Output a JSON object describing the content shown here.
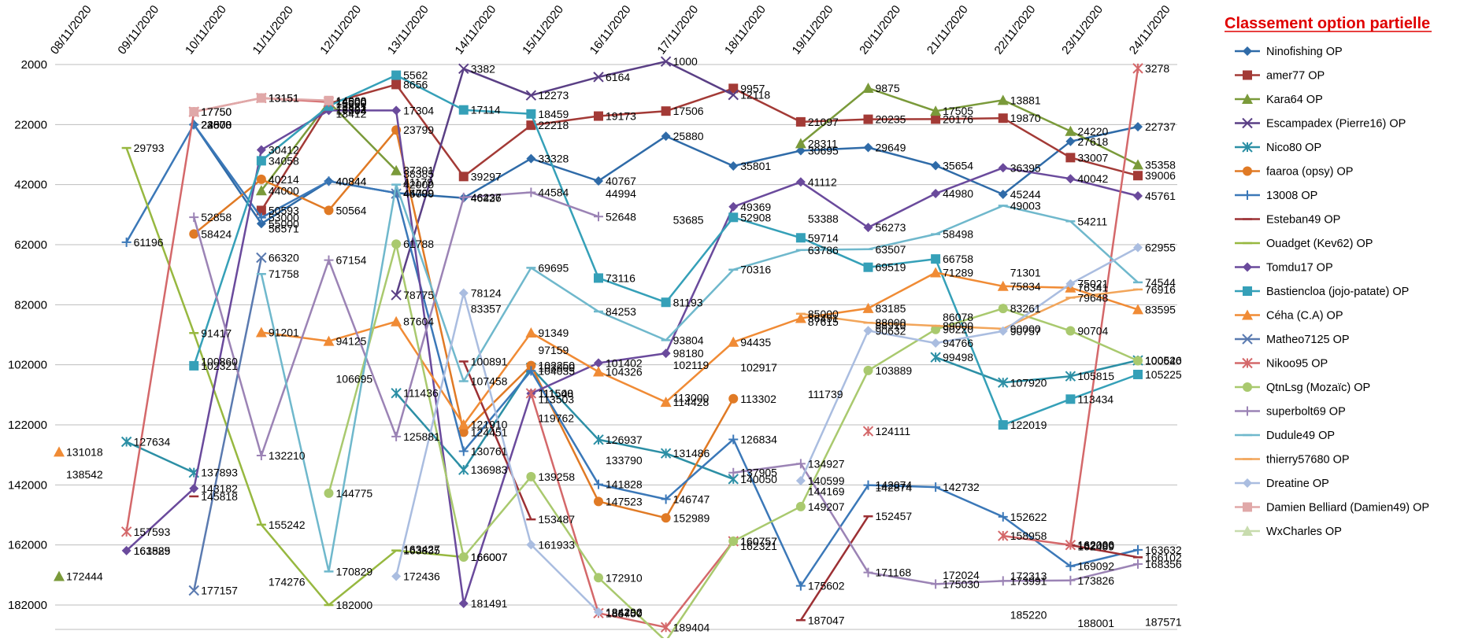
{
  "chart_data": {
    "type": "line",
    "title": "Classement option partielle",
    "y_inverted": true,
    "ylim": [
      2000,
      182000
    ],
    "y_ticks": [
      2000,
      22000,
      42000,
      62000,
      82000,
      102000,
      122000,
      142000,
      162000,
      182000
    ],
    "x_labels": [
      "08/11/2020",
      "09/11/2020",
      "10/11/2020",
      "11/11/2020",
      "12/11/2020",
      "13/11/2020",
      "14/11/2020",
      "15/11/2020",
      "16/11/2020",
      "17/11/2020",
      "18/11/2020",
      "19/11/2020",
      "20/11/2020",
      "21/11/2020",
      "22/11/2020",
      "23/11/2020",
      "24/11/2020"
    ],
    "grid": true,
    "legend_position": "right",
    "series": [
      {
        "name": "Ninofishing OP",
        "color": "#2f6ba8",
        "marker": "diamond",
        "values": [
          null,
          null,
          22000,
          55000,
          40844,
          44799,
          46426,
          33328,
          40767,
          25880,
          35801,
          30695,
          29649,
          35654,
          45244,
          27618,
          22737
        ]
      },
      {
        "name": "amer77 OP",
        "color": "#a33a36",
        "marker": "square",
        "values": [
          null,
          null,
          null,
          50593,
          15000,
          8656,
          39297,
          22218,
          19173,
          17506,
          9957,
          21097,
          20235,
          20176,
          19870,
          33007,
          39006
        ]
      },
      {
        "name": "Kara64  OP",
        "color": "#7a9a3a",
        "marker": "triangle",
        "values": [
          172444,
          null,
          null,
          44000,
          14500,
          37301,
          null,
          null,
          null,
          null,
          null,
          28311,
          9875,
          17505,
          13881,
          24220,
          35358
        ]
      },
      {
        "name": "Escampadex (Pierre16) OP",
        "color": "#5a3f85",
        "marker": "x",
        "values": [
          null,
          null,
          null,
          null,
          null,
          78775,
          3382,
          12273,
          6164,
          1000,
          12118,
          null,
          null,
          null,
          null,
          null,
          null
        ]
      },
      {
        "name": "Nico80 OP",
        "color": "#2c8fa5",
        "marker": "star",
        "values": [
          null,
          127634,
          137893,
          null,
          null,
          111436,
          136983,
          103000,
          126937,
          131486,
          140050,
          null,
          null,
          99498,
          107920,
          105815,
          100526
        ]
      },
      {
        "name": "faaroa (opsy) OP",
        "color": "#e07a25",
        "marker": "circle",
        "values": [
          null,
          null,
          58424,
          40214,
          50564,
          23799,
          124451,
          102250,
          147523,
          152989,
          113302,
          null,
          null,
          null,
          null,
          null,
          null
        ]
      },
      {
        "name": "13008 OP",
        "color": "#3b78b8",
        "marker": "plus",
        "values": [
          null,
          61196,
          22000,
          53000,
          40844,
          44799,
          130761,
          104035,
          141828,
          146747,
          126834,
          175602,
          142074,
          142732,
          152622,
          169092,
          163632
        ]
      },
      {
        "name": "Esteban49 OP",
        "color": "#9c3034",
        "marker": "dash",
        "values": [
          null,
          null,
          145818,
          null,
          null,
          null,
          100891,
          153487,
          null,
          null,
          null,
          187047,
          152457,
          null,
          null,
          162066,
          166102
        ]
      },
      {
        "name": "Ouadget (Kev62) OP",
        "color": "#97b840",
        "marker": "dash",
        "values": [
          null,
          29793,
          91417,
          155242,
          182000,
          163835,
          166007,
          null,
          null,
          null,
          null,
          null,
          null,
          null,
          null,
          null,
          null
        ]
      },
      {
        "name": "Tomdu17 OP",
        "color": "#6a4a9c",
        "marker": "diamond",
        "values": [
          null,
          163889,
          143182,
          30412,
          17304,
          17304,
          181491,
          111548,
          101402,
          98180,
          49369,
          41112,
          56273,
          44980,
          36395,
          40042,
          45761
        ]
      },
      {
        "name": "Bastiencloa (jojo-patate) OP",
        "color": "#35a0b8",
        "marker": "square",
        "values": [
          null,
          null,
          102321,
          34058,
          15821,
          5562,
          17114,
          18459,
          73116,
          81193,
          52908,
          59714,
          69519,
          66758,
          122019,
          113434,
          105225
        ]
      },
      {
        "name": "Céha (C.A) OP",
        "color": "#f08b35",
        "marker": "triangle",
        "values": [
          131018,
          null,
          null,
          91201,
          94125,
          87604,
          121910,
          91349,
          104326,
          114428,
          94435,
          86491,
          83185,
          71289,
          75834,
          76341,
          83595
        ]
      },
      {
        "name": "Matheo7125 OP",
        "color": "#5a7ab0",
        "marker": "x",
        "values": [
          null,
          null,
          177157,
          66320,
          null,
          45000,
          null,
          null,
          null,
          null,
          null,
          null,
          null,
          null,
          null,
          null,
          null
        ]
      },
      {
        "name": "Nikoo95 OP",
        "color": "#d4686a",
        "marker": "star",
        "values": [
          null,
          157593,
          17750,
          13151,
          14500,
          null,
          null,
          111500,
          184700,
          189404,
          160757,
          null,
          124111,
          null,
          158958,
          162000,
          3278
        ]
      },
      {
        "name": "QtnLsg (Mozaïc) OP",
        "color": "#a9c96e",
        "marker": "circle",
        "values": [
          null,
          null,
          null,
          null,
          144775,
          61788,
          166007,
          139258,
          172910,
          194000,
          160757,
          149207,
          103889,
          90220,
          83261,
          90704,
          100640
        ]
      },
      {
        "name": "superbolt69 OP",
        "color": "#9b83b5",
        "marker": "plus",
        "values": [
          null,
          null,
          52858,
          132210,
          67154,
          125881,
          46237,
          44584,
          52648,
          null,
          137905,
          134927,
          171168,
          175030,
          173991,
          173826,
          168356
        ]
      },
      {
        "name": "Dudule49 OP",
        "color": "#6fb8cc",
        "marker": "dash",
        "values": [
          null,
          null,
          null,
          71758,
          170829,
          42000,
          107458,
          69695,
          84253,
          93804,
          70316,
          63786,
          63507,
          58498,
          49003,
          54211,
          74544
        ]
      },
      {
        "name": "thierry57680 OP",
        "color": "#f2a55a",
        "marker": "dash",
        "values": [
          null,
          null,
          null,
          null,
          null,
          null,
          null,
          null,
          null,
          null,
          null,
          85000,
          88000,
          89000,
          90000,
          79648,
          76916
        ]
      },
      {
        "name": "Dreatine OP",
        "color": "#aabde0",
        "marker": "diamond",
        "values": [
          null,
          null,
          null,
          null,
          null,
          172436,
          78124,
          161933,
          184296,
          null,
          null,
          140599,
          90632,
          94766,
          90757,
          75021,
          62955
        ]
      },
      {
        "name": "Damien Belliard (Damien49) OP",
        "color": "#e0a8a8",
        "marker": "square",
        "values": [
          null,
          null,
          17750,
          13151,
          14000,
          null,
          null,
          null,
          null,
          null,
          null,
          null,
          null,
          null,
          null,
          null,
          null
        ]
      },
      {
        "name": "WxCharles OP",
        "color": "#c8dcae",
        "marker": "triangle",
        "values": [
          null,
          null,
          null,
          null,
          null,
          null,
          null,
          null,
          null,
          null,
          null,
          null,
          null,
          null,
          null,
          null,
          null
        ]
      }
    ],
    "extra_labels": [
      {
        "x": 0,
        "y": 138542,
        "text": "138542"
      },
      {
        "x": 1,
        "y": 163889,
        "text": "161525"
      },
      {
        "x": 2,
        "y": 100860,
        "text": "100860"
      },
      {
        "x": 2,
        "y": 22000,
        "text": "23508"
      },
      {
        "x": 2,
        "y": 22000,
        "text": "24873"
      },
      {
        "x": 3,
        "y": 56571,
        "text": "56571"
      },
      {
        "x": 3,
        "y": 174276,
        "text": "174276"
      },
      {
        "x": 4,
        "y": 106695,
        "text": "106695"
      },
      {
        "x": 4,
        "y": 18412,
        "text": "18412"
      },
      {
        "x": 4,
        "y": 16892,
        "text": "16892"
      },
      {
        "x": 5,
        "y": 41179,
        "text": "41179"
      },
      {
        "x": 5,
        "y": 38385,
        "text": "38385"
      },
      {
        "x": 5,
        "y": 163427,
        "text": "163427"
      },
      {
        "x": 6,
        "y": 83357,
        "text": "83357"
      },
      {
        "x": 7,
        "y": 97159,
        "text": "97159"
      },
      {
        "x": 7,
        "y": 119762,
        "text": "119762"
      },
      {
        "x": 7,
        "y": 113503,
        "text": "113503"
      },
      {
        "x": 8,
        "y": 44994,
        "text": "44994"
      },
      {
        "x": 8,
        "y": 133790,
        "text": "133790"
      },
      {
        "x": 8,
        "y": 184700,
        "text": "185457"
      },
      {
        "x": 9,
        "y": 53685,
        "text": "53685"
      },
      {
        "x": 9,
        "y": 102119,
        "text": "102119"
      },
      {
        "x": 9,
        "y": 113000,
        "text": "113000"
      },
      {
        "x": 10,
        "y": 102917,
        "text": "102917"
      },
      {
        "x": 10,
        "y": 162321,
        "text": "162321"
      },
      {
        "x": 11,
        "y": 111739,
        "text": "111739"
      },
      {
        "x": 11,
        "y": 144169,
        "text": "144169"
      },
      {
        "x": 11,
        "y": 53388,
        "text": "53388"
      },
      {
        "x": 11,
        "y": 87615,
        "text": "87615"
      },
      {
        "x": 12,
        "y": 88910,
        "text": "88910"
      },
      {
        "x": 12,
        "y": 142874,
        "text": "142874"
      },
      {
        "x": 13,
        "y": 86078,
        "text": "86078"
      },
      {
        "x": 13,
        "y": 172024,
        "text": "172024"
      },
      {
        "x": 14,
        "y": 71301,
        "text": "71301"
      },
      {
        "x": 14,
        "y": 185220,
        "text": "185220"
      },
      {
        "x": 14,
        "y": 172313,
        "text": "172313"
      },
      {
        "x": 15,
        "y": 188001,
        "text": "188001"
      },
      {
        "x": 15,
        "y": 162489,
        "text": "162489"
      },
      {
        "x": 16,
        "y": 187571,
        "text": "187571"
      }
    ]
  }
}
